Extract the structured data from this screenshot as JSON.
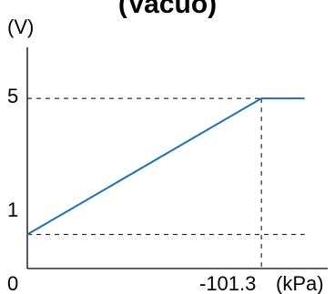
{
  "chart_data": {
    "type": "line",
    "title": "(Vacuo)",
    "ylabel": "(V)",
    "xlabel": "(kPa)",
    "origin_label": "0",
    "x_tick_label": "-101.3",
    "y_tick_labels": [
      "1",
      "5"
    ],
    "series": [
      {
        "points": [
          {
            "x": 0,
            "y": 1
          },
          {
            "x": -101.3,
            "y": 5
          },
          {
            "x": -120,
            "y": 5
          }
        ]
      }
    ],
    "reference_lines": [
      {
        "y": 5
      },
      {
        "y": 1
      },
      {
        "x": -101.3
      }
    ],
    "xlim": [
      0,
      -130
    ],
    "ylim": [
      0,
      6.5
    ],
    "grid": false
  },
  "colors": {
    "series": "#1f6fb5",
    "axis": "#000000",
    "reference": "#000000"
  }
}
